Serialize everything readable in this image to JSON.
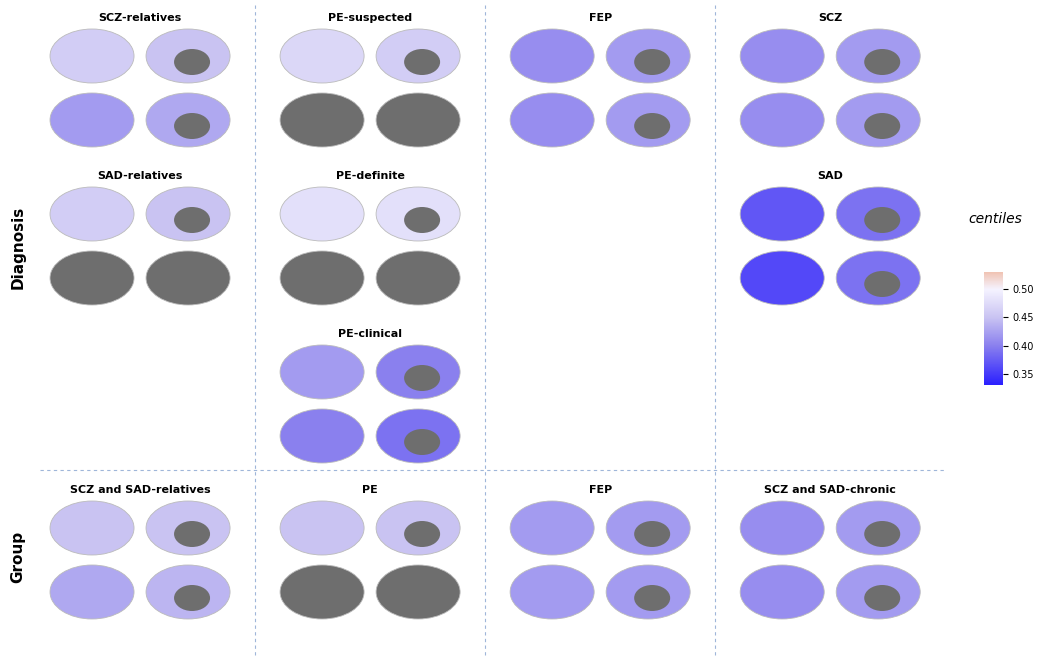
{
  "chart_data": {
    "type": "brain_map",
    "colorbar": {
      "label": "centiles",
      "range": [
        0.33,
        0.53
      ],
      "ticks": [
        0.35,
        {
          "value": 0.4,
          "label": "0.40"
        },
        0.45,
        {
          "value": 0.5,
          "label": "0.50"
        }
      ]
    },
    "sections": [
      {
        "name": "Diagnosis",
        "columns": [
          [
            {
              "title": "SCZ-relatives",
              "maps": [
                [
                  0.46,
                  0.45
                ],
                [
                  0.42,
                  0.43
                ]
              ]
            },
            {
              "title": "SAD-relatives",
              "maps": [
                [
                  0.46,
                  0.45
                ],
                [
                  null,
                  null
                ]
              ]
            }
          ],
          [
            {
              "title": "PE-suspected",
              "maps": [
                [
                  0.47,
                  0.46
                ],
                [
                  null,
                  null
                ]
              ]
            },
            {
              "title": "PE-definite",
              "maps": [
                [
                  0.48,
                  0.48
                ],
                [
                  null,
                  null
                ]
              ]
            },
            {
              "title": "PE-clinical",
              "maps": [
                [
                  0.42,
                  0.4
                ],
                [
                  0.4,
                  0.39
                ]
              ]
            }
          ],
          [
            {
              "title": "FEP",
              "maps": [
                [
                  0.41,
                  0.42
                ],
                [
                  0.41,
                  0.42
                ]
              ]
            }
          ],
          [
            {
              "title": "SCZ",
              "maps": [
                [
                  0.41,
                  0.42
                ],
                [
                  0.41,
                  0.42
                ]
              ]
            },
            {
              "title": "SAD",
              "maps": [
                [
                  0.37,
                  0.39
                ],
                [
                  0.36,
                  0.39
                ]
              ]
            }
          ]
        ]
      },
      {
        "name": "Group",
        "columns": [
          [
            {
              "title": "SCZ and SAD-relatives",
              "maps": [
                [
                  0.45,
                  0.45
                ],
                [
                  0.43,
                  0.44
                ]
              ]
            }
          ],
          [
            {
              "title": "PE",
              "maps": [
                [
                  0.45,
                  0.45
                ],
                [
                  null,
                  null
                ]
              ]
            }
          ],
          [
            {
              "title": "FEP",
              "maps": [
                [
                  0.42,
                  0.42
                ],
                [
                  0.42,
                  0.42
                ]
              ]
            }
          ],
          [
            {
              "title": "SCZ and SAD-chronic",
              "maps": [
                [
                  0.41,
                  0.42
                ],
                [
                  0.41,
                  0.42
                ]
              ]
            }
          ]
        ]
      }
    ]
  }
}
